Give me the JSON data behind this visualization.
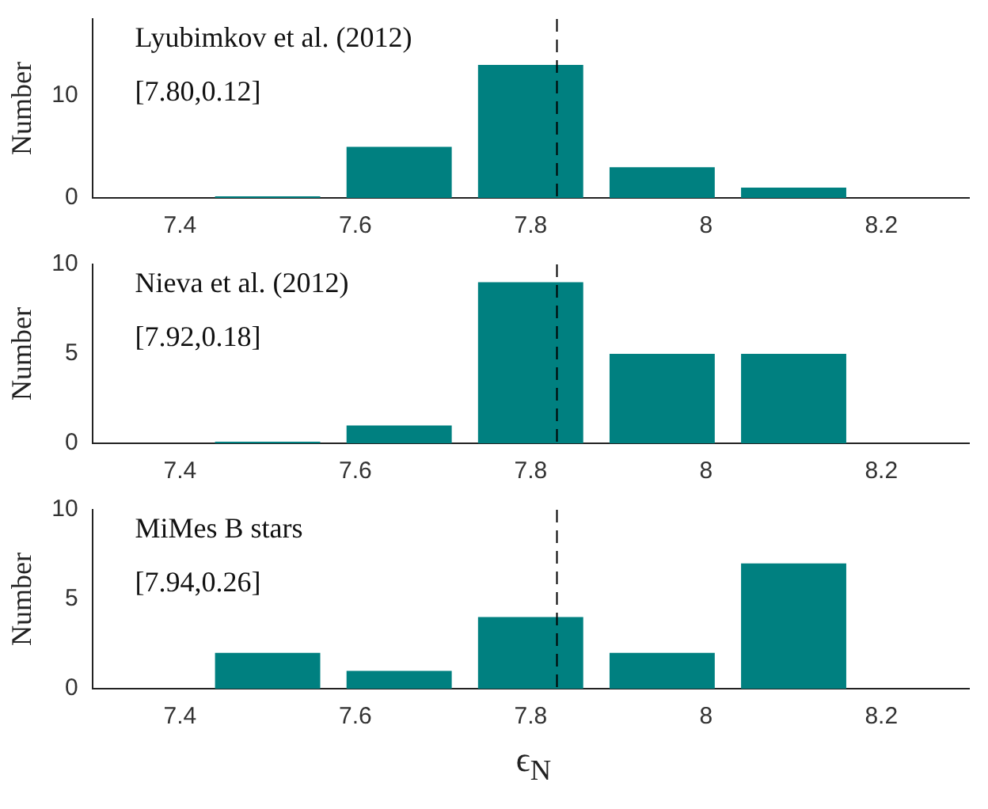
{
  "chart_data": [
    {
      "type": "bar",
      "x": [
        7.5,
        7.65,
        7.8,
        7.95,
        8.1
      ],
      "values": [
        0,
        5,
        13,
        3,
        1
      ],
      "color": "#008080",
      "ylabel": "Number",
      "xlim": [
        7.3,
        8.3
      ],
      "xticks": [
        7.4,
        7.6,
        7.8,
        8,
        8.2
      ],
      "ylim": [
        0,
        17.5
      ],
      "yticks": [
        0,
        10
      ],
      "grid": false,
      "annotations": [
        "Lyubimkov et al. (2012)",
        "[7.80,0.12]"
      ],
      "ref_lines": [
        {
          "axis": "x",
          "value": 7.83,
          "color": "#000000",
          "line_style": "dashed"
        }
      ]
    },
    {
      "type": "bar",
      "x": [
        7.5,
        7.65,
        7.8,
        7.95,
        8.1
      ],
      "values": [
        0,
        1,
        9,
        5,
        5
      ],
      "color": "#008080",
      "ylabel": "Number",
      "xlim": [
        7.3,
        8.3
      ],
      "xticks": [
        7.4,
        7.6,
        7.8,
        8,
        8.2
      ],
      "ylim": [
        0,
        10
      ],
      "yticks": [
        0,
        5,
        10
      ],
      "grid": false,
      "annotations": [
        "Nieva et al. (2012)",
        "[7.92,0.18]"
      ],
      "ref_lines": [
        {
          "axis": "x",
          "value": 7.83,
          "color": "#000000",
          "line_style": "dashed"
        }
      ]
    },
    {
      "type": "bar",
      "x": [
        7.5,
        7.65,
        7.8,
        7.95,
        8.1
      ],
      "values": [
        2,
        1,
        4,
        2,
        7
      ],
      "color": "#008080",
      "ylabel": "Number",
      "xlabel": "ϵ$_{N}$",
      "xlim": [
        7.3,
        8.3
      ],
      "xticks": [
        7.4,
        7.6,
        7.8,
        8,
        8.2
      ],
      "ylim": [
        0,
        10
      ],
      "yticks": [
        0,
        5,
        10
      ],
      "grid": false,
      "annotations": [
        "MiMes B stars",
        "[7.94,0.26]"
      ],
      "ref_lines": [
        {
          "axis": "x",
          "value": 7.83,
          "color": "#000000",
          "line_style": "dashed"
        }
      ]
    }
  ]
}
